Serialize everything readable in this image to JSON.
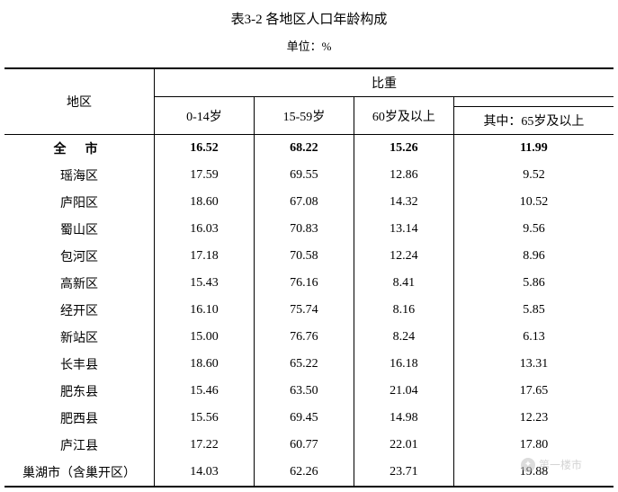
{
  "title": "表3-2  各地区人口年龄构成",
  "unit": "单位：%",
  "headers": {
    "region": "地区",
    "proportion": "比重",
    "age_0_14": "0-14岁",
    "age_15_59": "15-59岁",
    "age_60_plus": "60岁及以上",
    "age_65_plus": "其中：65岁及以上"
  },
  "total_row": {
    "region": "全市",
    "v1": "16.52",
    "v2": "68.22",
    "v3": "15.26",
    "v4": "11.99"
  },
  "rows": [
    {
      "region": "瑶海区",
      "v1": "17.59",
      "v2": "69.55",
      "v3": "12.86",
      "v4": "9.52"
    },
    {
      "region": "庐阳区",
      "v1": "18.60",
      "v2": "67.08",
      "v3": "14.32",
      "v4": "10.52"
    },
    {
      "region": "蜀山区",
      "v1": "16.03",
      "v2": "70.83",
      "v3": "13.14",
      "v4": "9.56"
    },
    {
      "region": "包河区",
      "v1": "17.18",
      "v2": "70.58",
      "v3": "12.24",
      "v4": "8.96"
    },
    {
      "region": "高新区",
      "v1": "15.43",
      "v2": "76.16",
      "v3": "8.41",
      "v4": "5.86"
    },
    {
      "region": "经开区",
      "v1": "16.10",
      "v2": "75.74",
      "v3": "8.16",
      "v4": "5.85"
    },
    {
      "region": "新站区",
      "v1": "15.00",
      "v2": "76.76",
      "v3": "8.24",
      "v4": "6.13"
    },
    {
      "region": "长丰县",
      "v1": "18.60",
      "v2": "65.22",
      "v3": "16.18",
      "v4": "13.31"
    },
    {
      "region": "肥东县",
      "v1": "15.46",
      "v2": "63.50",
      "v3": "21.04",
      "v4": "17.65"
    },
    {
      "region": "肥西县",
      "v1": "15.56",
      "v2": "69.45",
      "v3": "14.98",
      "v4": "12.23"
    },
    {
      "region": "庐江县",
      "v1": "17.22",
      "v2": "60.77",
      "v3": "22.01",
      "v4": "17.80"
    },
    {
      "region": "巢湖市（含巢开区）",
      "v1": "14.03",
      "v2": "62.26",
      "v3": "23.71",
      "v4": "19.88"
    }
  ],
  "watermark": {
    "text": "第一楼市"
  },
  "styling": {
    "font_family": "SimSun",
    "title_fontsize": 15,
    "body_fontsize": 14,
    "unit_fontsize": 13,
    "text_color": "#000000",
    "background_color": "#ffffff",
    "border_color_thick": "#000000",
    "border_color_thin": "#000000",
    "thick_border_width": 2,
    "thin_border_width": 1,
    "watermark_color": "#b0b0b0"
  }
}
